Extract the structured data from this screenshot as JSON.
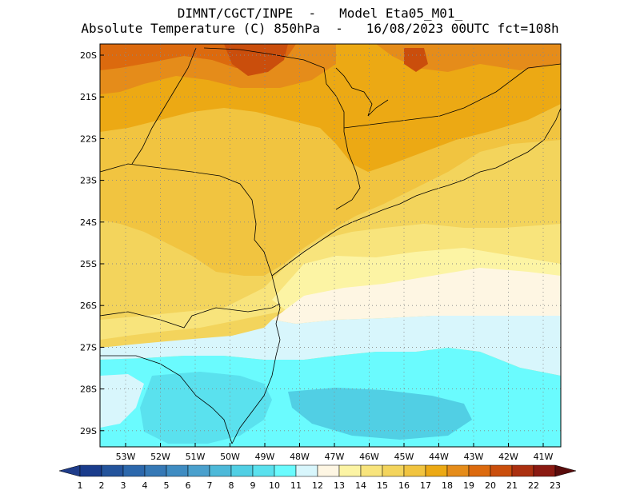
{
  "header": {
    "line1": "DIMNT/CGCT/INPE  -   Model Eta05_M01_",
    "line2": "Absolute Temperature (C) 850hPa  -   16/08/2023 00UTC fct=108h"
  },
  "map": {
    "lat_labels": [
      "20S",
      "21S",
      "22S",
      "23S",
      "24S",
      "25S",
      "26S",
      "27S",
      "28S",
      "29S"
    ],
    "lon_labels": [
      "53W",
      "52W",
      "51W",
      "50W",
      "49W",
      "48W",
      "47W",
      "46W",
      "45W",
      "44W",
      "43W",
      "42W",
      "41W"
    ]
  },
  "colorbar": {
    "labels": [
      "1",
      "2",
      "3",
      "4",
      "5",
      "6",
      "7",
      "8",
      "9",
      "10",
      "11",
      "12",
      "13",
      "14",
      "15",
      "16",
      "17",
      "18",
      "19",
      "20",
      "21",
      "22",
      "23"
    ],
    "colors": [
      "#1a3c8c",
      "#24549c",
      "#2c68ac",
      "#3679b6",
      "#3f8cc2",
      "#4aa0cd",
      "#4db9d9",
      "#51cfe4",
      "#5ae1ee",
      "#6afbfe",
      "#d8f6fc",
      "#fef6e3",
      "#fcf4a4",
      "#f8e47c",
      "#f3d45c",
      "#f1c440",
      "#eca914",
      "#e58c1a",
      "#dc6a0e",
      "#ca4e0c",
      "#ab3010",
      "#8b1a12",
      "#6a0c0c"
    ],
    "low_arrow_color": "#1f3c8a",
    "high_arrow_color": "#5a0c0c"
  }
}
